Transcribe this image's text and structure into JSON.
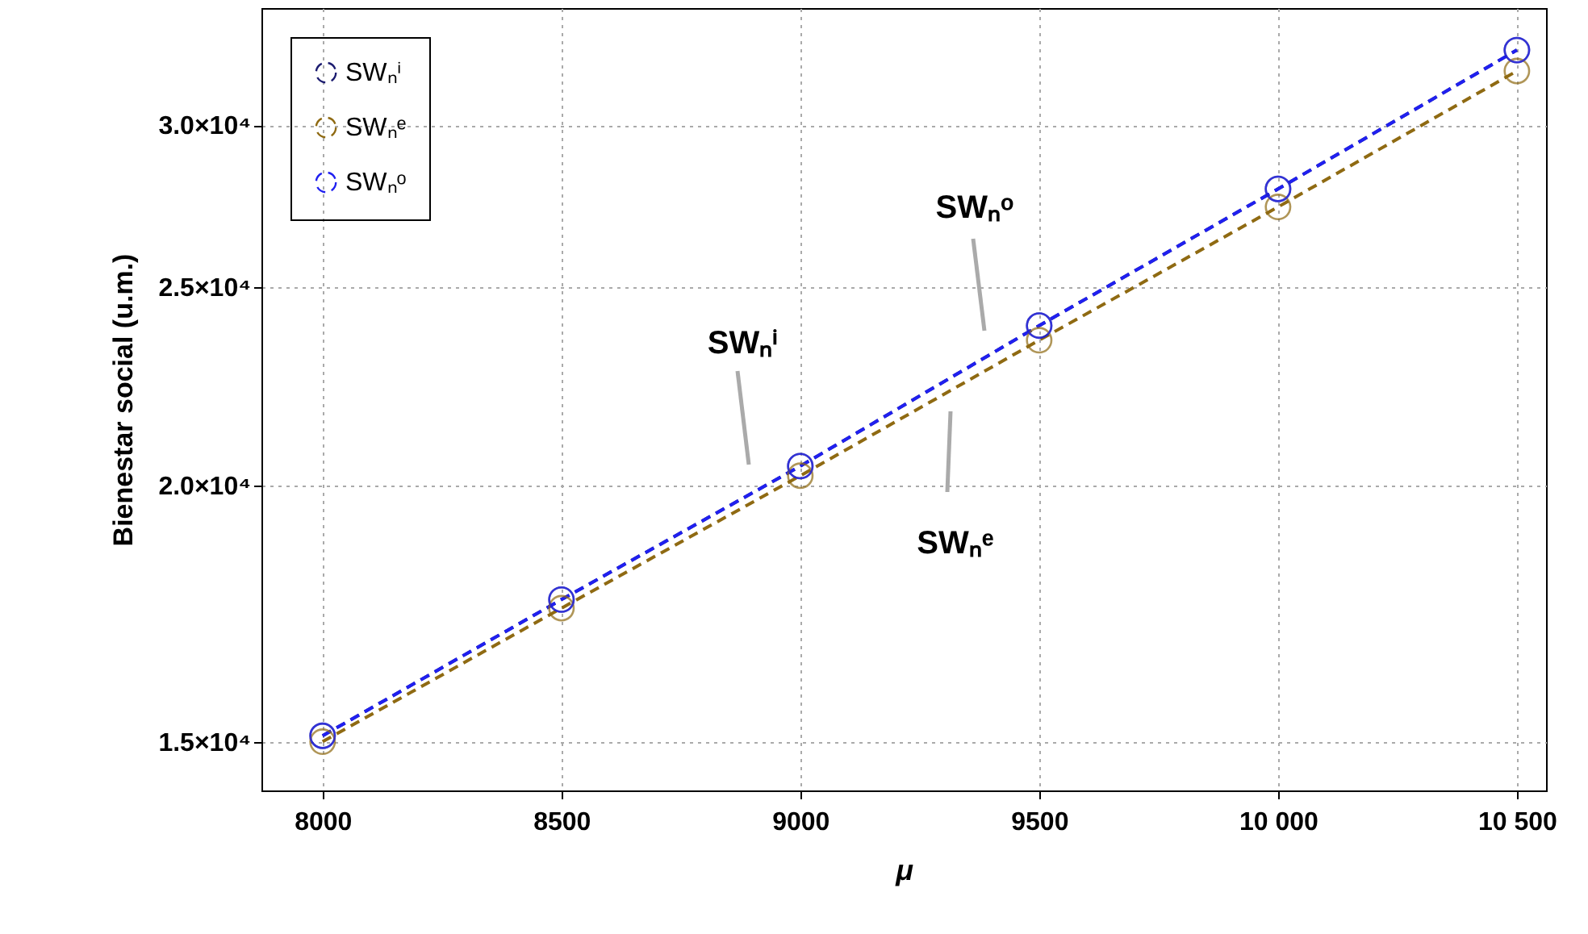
{
  "chart_data": {
    "type": "line",
    "xlabel": "μ",
    "ylabel": "Bienestar social (u.m.)",
    "x": [
      8000,
      8500,
      9000,
      9500,
      10000,
      10500
    ],
    "series": [
      {
        "name": "SWₙⁱ",
        "color": "#1c1c70",
        "values": [
          15100,
          17600,
          20450,
          23950,
          27930,
          32650
        ]
      },
      {
        "name": "SWₙᵉ",
        "color": "#8f6a12",
        "values": [
          15000,
          17430,
          20230,
          23560,
          27370,
          31890
        ]
      },
      {
        "name": "SWₙᵒ",
        "color": "#2020f0",
        "values": [
          15100,
          17600,
          20450,
          23950,
          27930,
          32650
        ]
      }
    ],
    "xlim": [
      7872,
      10561
    ],
    "ylim": [
      14200,
      34230
    ],
    "xticks": [
      8000,
      8500,
      9000,
      9500,
      {
        "value": 10000,
        "label": "10 000"
      },
      {
        "value": 10500,
        "label": "10 500"
      }
    ],
    "yticks": [
      {
        "value": 15000,
        "label": "1.5×10⁴"
      },
      {
        "value": 20000,
        "label": "2.0×10⁴"
      },
      {
        "value": 25000,
        "label": "2.5×10⁴"
      },
      {
        "value": 30000,
        "label": "3.0×10⁴"
      }
    ],
    "log": "y",
    "grid": true,
    "legend": "top left",
    "marker": "circle",
    "line_style": "dashed",
    "annotations": [
      "SWₙⁱ",
      "SWₙᵒ",
      "SWₙᵉ"
    ]
  }
}
